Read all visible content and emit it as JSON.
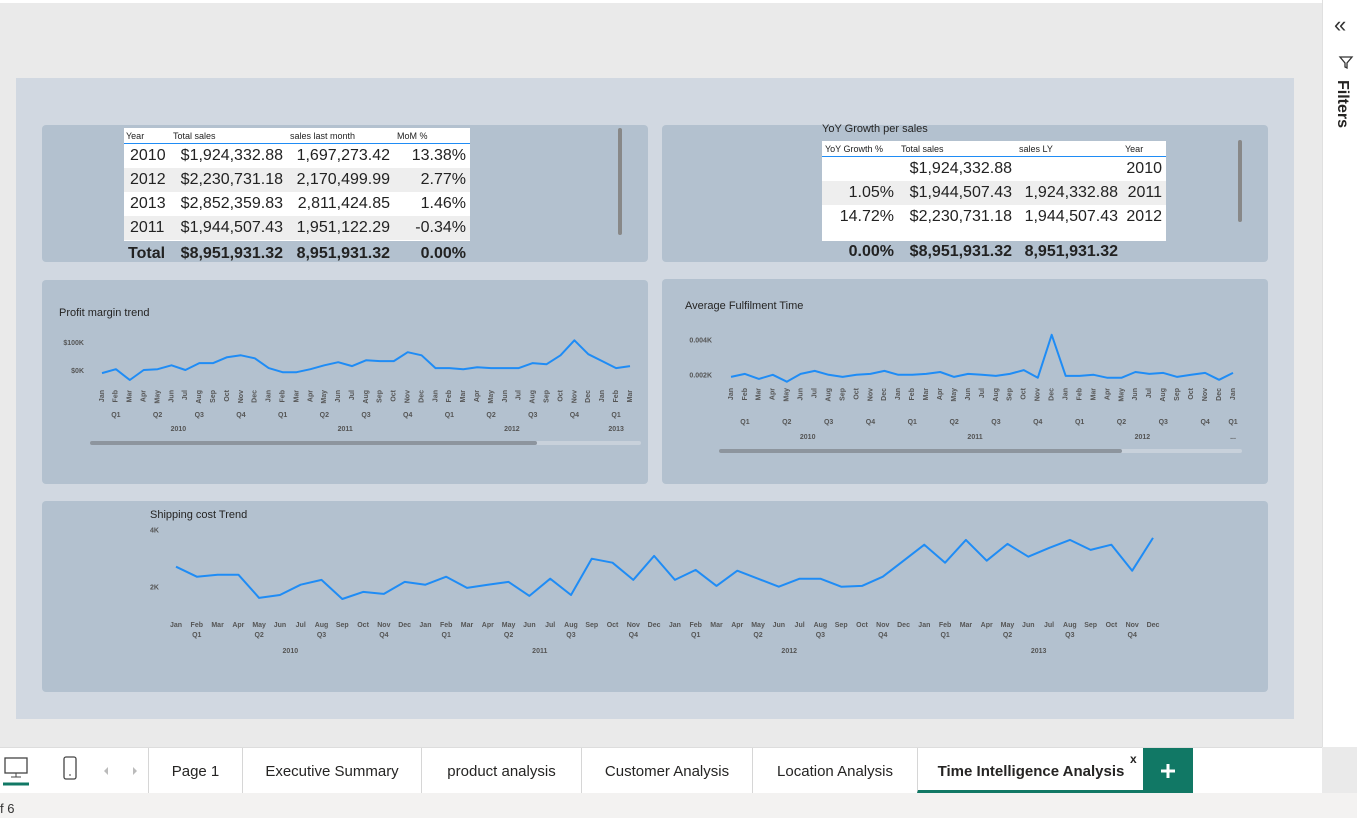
{
  "tables": [
    {
      "columns": [
        "Year",
        "Total sales",
        "sales last month",
        "MoM %"
      ],
      "rows": [
        [
          "2010",
          "$1,924,332.88",
          "1,697,273.42",
          "13.38%"
        ],
        [
          "2012",
          "$2,230,731.18",
          "2,170,499.99",
          "2.77%"
        ],
        [
          "2013",
          "$2,852,359.83",
          "2,811,424.85",
          "1.46%"
        ],
        [
          "2011",
          "$1,944,507.43",
          "1,951,122.29",
          "-0.34%"
        ]
      ],
      "total": [
        "Total",
        "$8,951,931.32",
        "8,951,931.32",
        "0.00%"
      ]
    },
    {
      "title": "YoY Growth per sales",
      "columns": [
        "YoY Growth %",
        "Total sales",
        "sales LY",
        "Year"
      ],
      "rows": [
        [
          null,
          "$1,924,332.88",
          null,
          "2010"
        ],
        [
          "1.05%",
          "$1,944,507.43",
          "1,924,332.88",
          "2011"
        ],
        [
          "14.72%",
          "$2,230,731.18",
          "1,944,507.43",
          "2012"
        ]
      ],
      "total": [
        "0.00%",
        "$8,951,931.32",
        "8,951,931.32"
      ]
    }
  ],
  "chart_data": [
    {
      "type": "line",
      "title": "Profit margin trend",
      "color": "#1f8cf5",
      "categories": [
        "Jan",
        "Feb",
        "Mar",
        "Apr",
        "May",
        "Jun",
        "Jul",
        "Aug",
        "Sep",
        "Oct",
        "Nov",
        "Dec",
        "Jan",
        "Feb",
        "Mar",
        "Apr",
        "May",
        "Jun",
        "Jul",
        "Aug",
        "Sep",
        "Oct",
        "Nov",
        "Dec",
        "Jan",
        "Feb",
        "Mar",
        "Apr",
        "May",
        "Jun",
        "Jul",
        "Aug",
        "Sep",
        "Oct",
        "Nov",
        "Dec",
        "Jan",
        "Feb",
        "Mar"
      ],
      "quarters": [
        "Q1",
        "Q2",
        "Q3",
        "Q4",
        "Q1",
        "Q2",
        "Q3",
        "Q4",
        "Q1",
        "Q2",
        "Q3",
        "Q4",
        "Q1"
      ],
      "years": [
        "2010",
        "2011",
        "2012",
        "2013"
      ],
      "values": [
        -7000,
        7000,
        -32000,
        4000,
        7000,
        21000,
        4000,
        29000,
        29000,
        50000,
        57000,
        46000,
        11000,
        -4000,
        -4000,
        7000,
        21000,
        32000,
        18000,
        39000,
        36000,
        36000,
        68000,
        57000,
        11000,
        11000,
        7000,
        14000,
        11000,
        11000,
        11000,
        29000,
        25000,
        57000,
        111000,
        61000,
        36000,
        11000,
        18000
      ],
      "ylim": [
        -50000,
        130000
      ],
      "yticks": [
        {
          "value": 100000,
          "label": "$100K"
        },
        {
          "value": 0,
          "label": "$0K"
        }
      ]
    },
    {
      "type": "line",
      "title": "Average Fulfilment Time",
      "color": "#1f8cf5",
      "categories": [
        "Jan",
        "Feb",
        "Mar",
        "Apr",
        "May",
        "Jun",
        "Jul",
        "Aug",
        "Sep",
        "Oct",
        "Nov",
        "Dec",
        "Jan",
        "Feb",
        "Mar",
        "Apr",
        "May",
        "Jun",
        "Jul",
        "Aug",
        "Sep",
        "Oct",
        "Nov",
        "Dec",
        "Jan",
        "Feb",
        "Mar",
        "Apr",
        "May",
        "Jun",
        "Jul",
        "Aug",
        "Sep",
        "Oct",
        "Nov",
        "Dec",
        "Jan"
      ],
      "quarters": [
        "Q1",
        "Q2",
        "Q3",
        "Q4",
        "Q1",
        "Q2",
        "Q3",
        "Q4",
        "Q1",
        "Q2",
        "Q3",
        "Q4",
        "Q1"
      ],
      "years": [
        "2010",
        "2011",
        "2012",
        "..."
      ],
      "values": [
        1.94,
        2.11,
        1.83,
        2.06,
        1.67,
        2.11,
        2.28,
        2.06,
        1.94,
        2.06,
        2.11,
        2.28,
        2.06,
        2.06,
        2.11,
        2.22,
        1.94,
        2.11,
        2.06,
        2.0,
        2.11,
        2.33,
        1.89,
        4.33,
        2.0,
        2.0,
        2.06,
        1.89,
        1.89,
        2.22,
        2.11,
        2.17,
        1.94,
        2.06,
        2.17,
        1.78,
        2.17
      ],
      "ylim": [
        1.2,
        4.6
      ],
      "yticks": [
        {
          "value": 4,
          "label": "0.004K"
        },
        {
          "value": 2,
          "label": "0.002K"
        }
      ]
    },
    {
      "type": "line",
      "title": "Shipping cost Trend",
      "color": "#1f8cf5",
      "categories": [
        "Jan",
        "Feb",
        "Mar",
        "Apr",
        "May",
        "Jun",
        "Jul",
        "Aug",
        "Sep",
        "Oct",
        "Nov",
        "Dec",
        "Jan",
        "Feb",
        "Mar",
        "Apr",
        "May",
        "Jun",
        "Jul",
        "Aug",
        "Sep",
        "Oct",
        "Nov",
        "Dec",
        "Jan",
        "Feb",
        "Mar",
        "Apr",
        "May",
        "Jun",
        "Jul",
        "Aug",
        "Sep",
        "Oct",
        "Nov",
        "Dec",
        "Jan",
        "Feb",
        "Mar",
        "Apr",
        "May",
        "Jun",
        "Jul",
        "Aug",
        "Sep",
        "Oct",
        "Nov",
        "Dec"
      ],
      "quarters": [
        "Q1",
        "Q2",
        "Q3",
        "Q4",
        "Q1",
        "Q2",
        "Q3",
        "Q4",
        "Q1",
        "Q2",
        "Q3",
        "Q4",
        "Q1",
        "Q2",
        "Q3",
        "Q4"
      ],
      "years": [
        "2010",
        "2011",
        "2012",
        "2013"
      ],
      "values": [
        2740,
        2390,
        2460,
        2460,
        1650,
        1750,
        2110,
        2280,
        1610,
        1860,
        1790,
        2210,
        2110,
        2390,
        2000,
        2110,
        2210,
        1720,
        2320,
        1750,
        3020,
        2880,
        2280,
        3120,
        2280,
        2630,
        2070,
        2600,
        2320,
        2040,
        2320,
        2320,
        2040,
        2070,
        2390,
        2950,
        3510,
        2880,
        3680,
        2950,
        3540,
        3090,
        3400,
        3680,
        3330,
        3510,
        2600,
        3750
      ],
      "ylim": [
        1400,
        4200
      ],
      "yticks": [
        {
          "value": 4000,
          "label": "4K"
        },
        {
          "value": 2000,
          "label": "2K"
        }
      ]
    }
  ],
  "tabs": [
    "Page 1",
    "Executive Summary",
    "product analysis",
    "Customer Analysis",
    "Location Analysis",
    "Time Intelligence Analysis"
  ],
  "tab_close": "x",
  "filters_label": "Filters",
  "status": "f 6"
}
